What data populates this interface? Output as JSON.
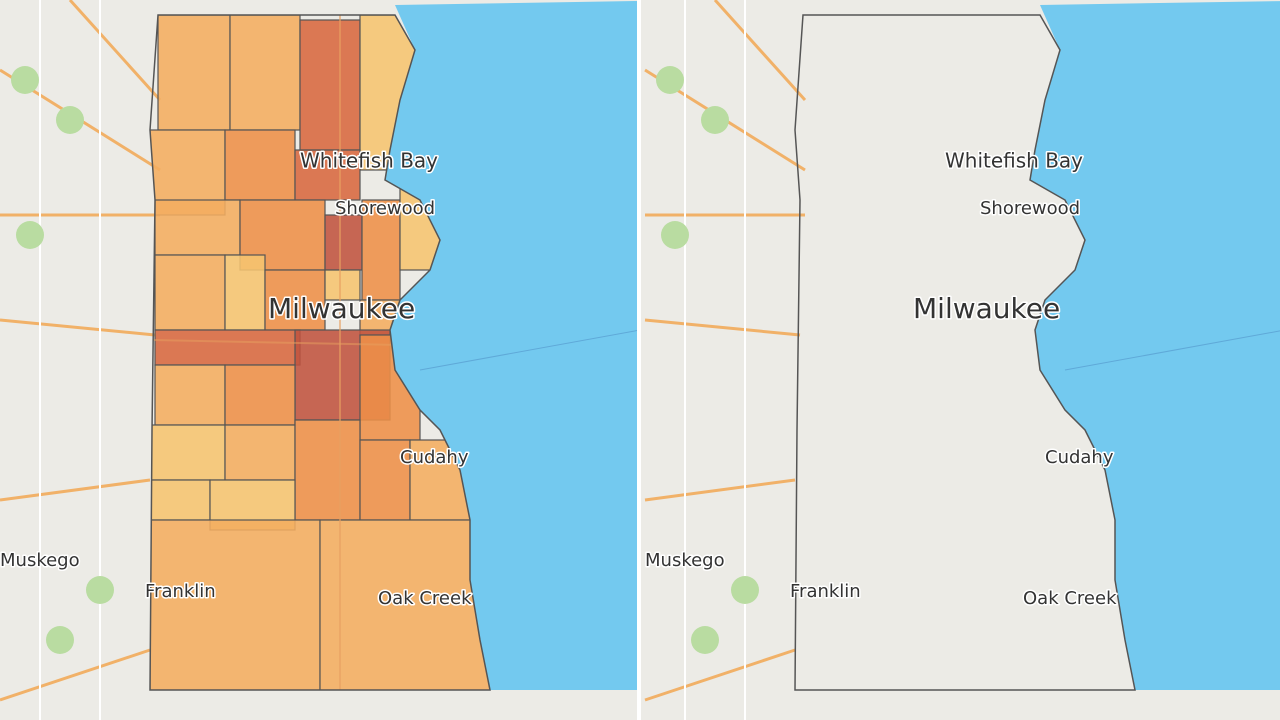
{
  "maps": [
    {
      "labels": [
        "Whitefish Bay",
        "Shorewood",
        "Milwaukee",
        "Cudahy",
        "Muskego",
        "Franklin",
        "Oak Creek"
      ]
    },
    {
      "labels": [
        "Whitefish Bay",
        "Shorewood",
        "Milwaukee",
        "Cudahy",
        "Muskego",
        "Franklin",
        "Oak Creek"
      ]
    }
  ]
}
